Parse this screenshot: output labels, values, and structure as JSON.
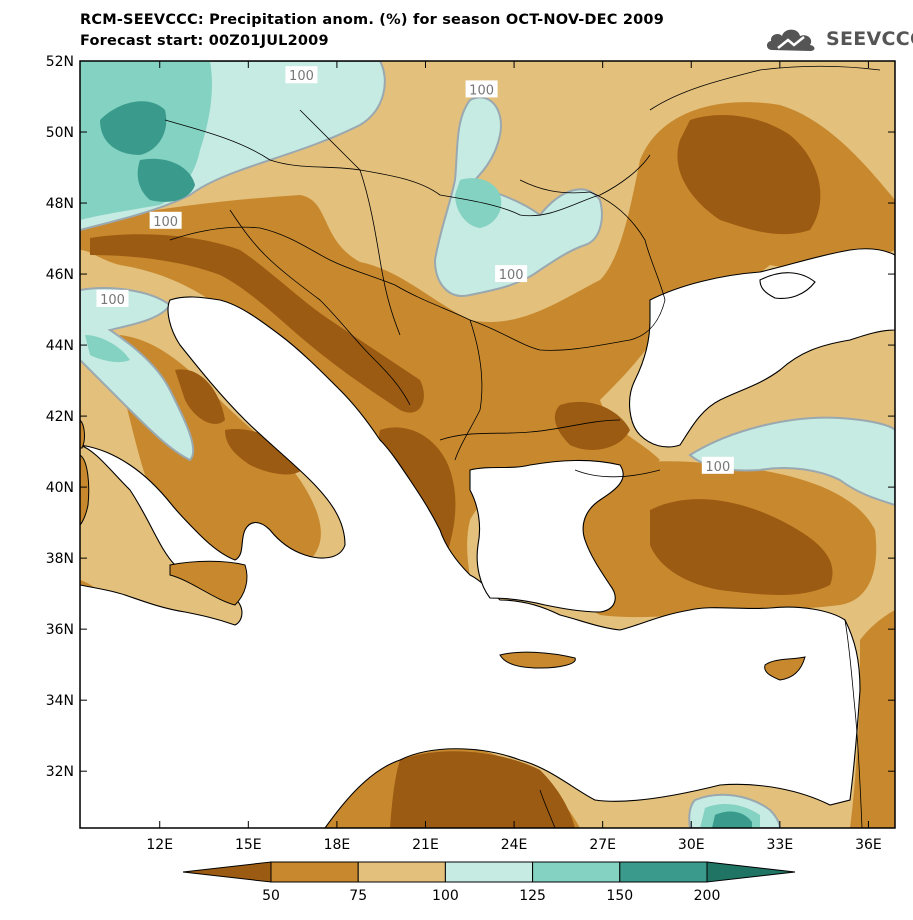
{
  "title": {
    "line1": "RCM-SEEVCCC: Precipitation anom. (%) for season OCT-NOV-DEC 2009",
    "line2": "Forecast start: 00Z01JUL2009"
  },
  "logo": {
    "text": "SEEVCCC",
    "icon": "cloud-logo-icon"
  },
  "map": {
    "projection": "lat-lon",
    "lon_range": [
      9.3,
      36.9
    ],
    "lat_range": [
      30.4,
      52
    ],
    "lat_ticks": [
      {
        "value": 52,
        "label": "52N"
      },
      {
        "value": 50,
        "label": "50N"
      },
      {
        "value": 48,
        "label": "48N"
      },
      {
        "value": 46,
        "label": "46N"
      },
      {
        "value": 44,
        "label": "44N"
      },
      {
        "value": 42,
        "label": "42N"
      },
      {
        "value": 40,
        "label": "40N"
      },
      {
        "value": 38,
        "label": "38N"
      },
      {
        "value": 36,
        "label": "36N"
      },
      {
        "value": 34,
        "label": "34N"
      },
      {
        "value": 32,
        "label": "32N"
      }
    ],
    "lon_ticks": [
      {
        "value": 12,
        "label": "12E"
      },
      {
        "value": 15,
        "label": "15E"
      },
      {
        "value": 18,
        "label": "18E"
      },
      {
        "value": 21,
        "label": "21E"
      },
      {
        "value": 24,
        "label": "24E"
      },
      {
        "value": 27,
        "label": "27E"
      },
      {
        "value": 30,
        "label": "30E"
      },
      {
        "value": 33,
        "label": "33E"
      },
      {
        "value": 36,
        "label": "36E"
      }
    ],
    "contour_labels": [
      {
        "text": "100",
        "lon": 16.8,
        "lat": 51.6
      },
      {
        "text": "100",
        "lon": 22.9,
        "lat": 51.2
      },
      {
        "text": "100",
        "lon": 12.2,
        "lat": 47.5
      },
      {
        "text": "100",
        "lon": 23.9,
        "lat": 46.0
      },
      {
        "text": "100",
        "lon": 10.4,
        "lat": 45.3
      },
      {
        "text": "100",
        "lon": 30.9,
        "lat": 40.6
      }
    ]
  },
  "colorbar": {
    "colors": [
      "#9c5b12",
      "#c8892e",
      "#e3c07c",
      "#c6ebe3",
      "#84d2c2",
      "#3a9b8c",
      "#1f7463"
    ],
    "labels": [
      "50",
      "75",
      "100",
      "125",
      "150",
      "200"
    ]
  }
}
